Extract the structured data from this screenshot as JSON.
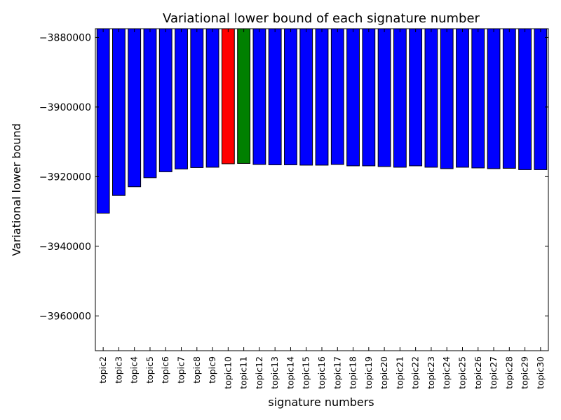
{
  "chart_data": {
    "type": "bar",
    "title": "Variational lower bound of each signature number",
    "xlabel": "signature numbers",
    "ylabel": "Variational lower bound",
    "ylim": [
      -3970000,
      -3877500
    ],
    "yticks": [
      -3880000,
      -3900000,
      -3920000,
      -3940000,
      -3960000
    ],
    "ytick_labels": [
      "−3880000",
      "−3900000",
      "−3920000",
      "−3940000",
      "−3960000"
    ],
    "categories": [
      "topic2",
      "topic3",
      "topic4",
      "topic5",
      "topic6",
      "topic7",
      "topic8",
      "topic9",
      "topic10",
      "topic11",
      "topic12",
      "topic13",
      "topic14",
      "topic15",
      "topic16",
      "topic17",
      "topic18",
      "topic19",
      "topic20",
      "topic21",
      "topic22",
      "topic23",
      "topic24",
      "topic25",
      "topic26",
      "topic27",
      "topic28",
      "topic29",
      "topic30"
    ],
    "values": [
      -3930500,
      -3925400,
      -3922900,
      -3920300,
      -3918600,
      -3917800,
      -3917400,
      -3917300,
      -3916300,
      -3916200,
      -3916500,
      -3916600,
      -3916600,
      -3916700,
      -3916700,
      -3916500,
      -3916900,
      -3916900,
      -3917100,
      -3917300,
      -3916900,
      -3917300,
      -3917700,
      -3917300,
      -3917500,
      -3917700,
      -3917600,
      -3918000,
      -3918000
    ],
    "bar_colors": [
      "#0000ff",
      "#0000ff",
      "#0000ff",
      "#0000ff",
      "#0000ff",
      "#0000ff",
      "#0000ff",
      "#0000ff",
      "#ff0000",
      "#008000",
      "#0000ff",
      "#0000ff",
      "#0000ff",
      "#0000ff",
      "#0000ff",
      "#0000ff",
      "#0000ff",
      "#0000ff",
      "#0000ff",
      "#0000ff",
      "#0000ff",
      "#0000ff",
      "#0000ff",
      "#0000ff",
      "#0000ff",
      "#0000ff",
      "#0000ff",
      "#0000ff",
      "#0000ff"
    ],
    "grid": false,
    "legend": "none"
  }
}
